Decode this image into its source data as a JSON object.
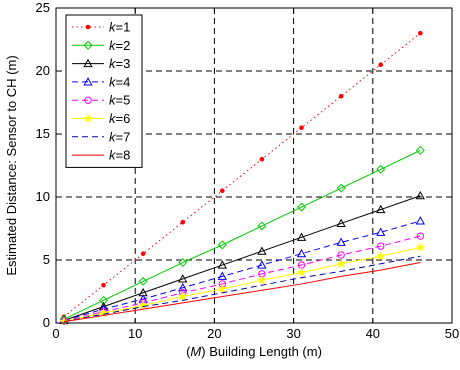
{
  "chart_data": {
    "type": "line",
    "title": "",
    "xlabel": "(M) Building Length (m)",
    "xlabel_parts": {
      "open": "(",
      "var": "M",
      "rest": ") Building Length (m)"
    },
    "ylabel": "Estimated Distance: Sensor to CH (m)",
    "xlim": [
      0,
      50
    ],
    "ylim": [
      0,
      25
    ],
    "xticks": [
      0,
      10,
      20,
      30,
      40,
      50
    ],
    "yticks": [
      0,
      5,
      10,
      15,
      20,
      25
    ],
    "grid": "dashed, major ticks",
    "legend_position": "top-left",
    "x": [
      1,
      6,
      11,
      16,
      21,
      26,
      31,
      36,
      41,
      46
    ],
    "series": [
      {
        "name": "k=1",
        "k_label": "k",
        "k_value": "=1",
        "color": "#ff0000",
        "line": "dotted",
        "marker": "dot",
        "values": [
          0.5,
          3.0,
          5.5,
          8.0,
          10.5,
          13.0,
          15.5,
          18.0,
          20.5,
          23.0
        ]
      },
      {
        "name": "k=2",
        "k_label": "k",
        "k_value": "=2",
        "color": "#00cc00",
        "line": "solid",
        "marker": "diamond",
        "values": [
          0.3,
          1.8,
          3.3,
          4.8,
          6.2,
          7.7,
          9.2,
          10.7,
          12.2,
          13.7
        ]
      },
      {
        "name": "k=3",
        "k_label": "k",
        "k_value": "=3",
        "color": "#000000",
        "line": "solid",
        "marker": "triangle-up",
        "values": [
          0.2,
          1.3,
          2.4,
          3.5,
          4.6,
          5.7,
          6.8,
          7.9,
          9.0,
          10.1
        ]
      },
      {
        "name": "k=4",
        "k_label": "k",
        "k_value": "=4",
        "color": "#0000ff",
        "line": "dashed",
        "marker": "triangle-up",
        "values": [
          0.2,
          1.1,
          1.9,
          2.8,
          3.7,
          4.6,
          5.5,
          6.4,
          7.2,
          8.1
        ]
      },
      {
        "name": "k=5",
        "k_label": "k",
        "k_value": "=5",
        "color": "#ff00ff",
        "line": "dashed",
        "marker": "circle",
        "values": [
          0.15,
          0.9,
          1.6,
          2.4,
          3.1,
          3.9,
          4.6,
          5.4,
          6.1,
          6.9
        ]
      },
      {
        "name": "k=6",
        "k_label": "k",
        "k_value": "=6",
        "color": "#ffff00",
        "line": "solid",
        "marker": "star",
        "values": [
          0.13,
          0.8,
          1.4,
          2.1,
          2.7,
          3.4,
          4.0,
          4.7,
          5.3,
          6.0
        ]
      },
      {
        "name": "k=7",
        "k_label": "k",
        "k_value": "=7",
        "color": "#0000aa",
        "line": "dashed",
        "marker": "none",
        "values": [
          0.12,
          0.7,
          1.3,
          1.8,
          2.4,
          3.0,
          3.6,
          4.1,
          4.7,
          5.3
        ]
      },
      {
        "name": "k=8",
        "k_label": "k",
        "k_value": "=8",
        "color": "#ff0000",
        "line": "solid",
        "marker": "none",
        "values": [
          0.1,
          0.6,
          1.1,
          1.6,
          2.1,
          2.6,
          3.1,
          3.7,
          4.2,
          4.8
        ]
      }
    ]
  }
}
